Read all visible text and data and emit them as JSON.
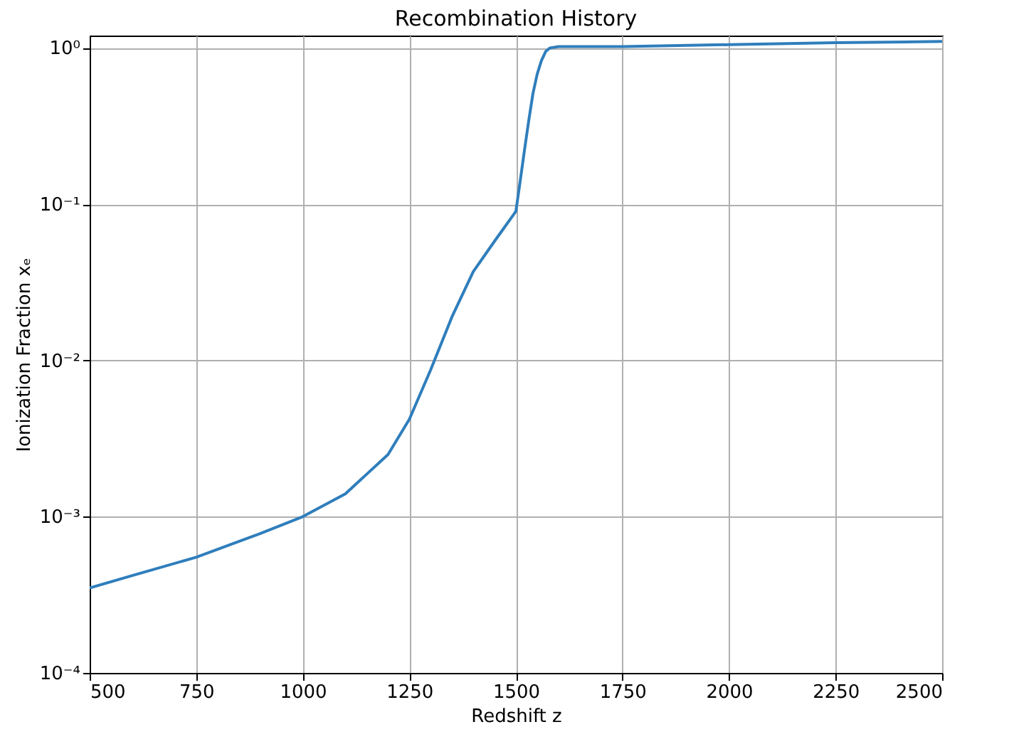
{
  "chart_data": {
    "type": "line",
    "title": "Recombination History",
    "xlabel": "Redshift z",
    "ylabel": "Ionization Fraction xₑ",
    "log": "y",
    "grid": true,
    "xlim": [
      500,
      2500
    ],
    "xticks": [
      500,
      750,
      1000,
      1250,
      1500,
      1750,
      2000,
      2250,
      2500
    ],
    "ylim": [
      0.0001,
      1.2
    ],
    "yticks": [
      {
        "value": 0.0001,
        "label": "10⁻⁴"
      },
      {
        "value": 0.001,
        "label": "10⁻³"
      },
      {
        "value": 0.01,
        "label": "10⁻²"
      },
      {
        "value": 0.1,
        "label": "10⁻¹"
      },
      {
        "value": 1,
        "label": "10⁰"
      }
    ],
    "series": [
      {
        "color": "#2f7ebc",
        "x": [
          500,
          600,
          750,
          900,
          1000,
          1100,
          1200,
          1250,
          1300,
          1350,
          1400,
          1450,
          1500,
          1510,
          1520,
          1530,
          1540,
          1550,
          1560,
          1570,
          1580,
          1600,
          1750,
          2000,
          2250,
          2500
        ],
        "values": [
          0.00035,
          0.00042,
          0.00055,
          0.00078,
          0.001,
          0.0014,
          0.0025,
          0.0042,
          0.0087,
          0.019,
          0.037,
          0.058,
          0.09,
          0.14,
          0.22,
          0.34,
          0.51,
          0.68,
          0.83,
          0.95,
          1.0,
          1.02,
          1.02,
          1.05,
          1.08,
          1.1
        ]
      }
    ]
  }
}
